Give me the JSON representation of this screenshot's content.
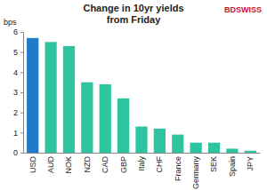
{
  "chart_data": {
    "type": "bar",
    "title": "Change in 10yr yields from Friday",
    "y_label": "bps",
    "annotations": [
      "BDSWISS"
    ],
    "categories": [
      "USD",
      "AUD",
      "NOK",
      "NZD",
      "CAD",
      "GBP",
      "Italy",
      "CHF",
      "France",
      "Germany",
      "SEK",
      "Spain",
      "JPY"
    ],
    "values": [
      5.7,
      5.5,
      5.3,
      3.5,
      3.4,
      2.7,
      1.3,
      1.2,
      0.9,
      0.5,
      0.5,
      0.2,
      0.1
    ],
    "colors": [
      "#1f7ac9",
      "#2ec4a0",
      "#2ec4a0",
      "#2ec4a0",
      "#2ec4a0",
      "#2ec4a0",
      "#2ec4a0",
      "#2ec4a0",
      "#2ec4a0",
      "#2ec4a0",
      "#2ec4a0",
      "#2ec4a0",
      "#2ec4a0"
    ],
    "ylim": [
      0,
      6
    ],
    "yticks": [
      0,
      1,
      2,
      3,
      4,
      5,
      6
    ],
    "grid": false
  }
}
